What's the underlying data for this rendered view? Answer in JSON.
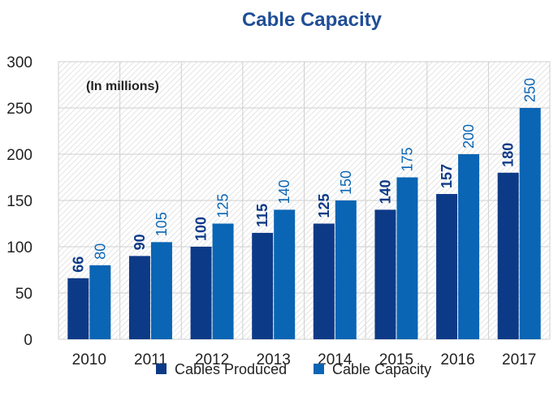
{
  "chart_data": {
    "type": "bar",
    "title": "Cable Capacity",
    "annotation": "(In millions)",
    "categories": [
      "2010",
      "2011",
      "2012",
      "2013",
      "2014",
      "2015",
      "2016",
      "2017"
    ],
    "series": [
      {
        "name": "Cables Produced",
        "values": [
          66,
          90,
          100,
          115,
          125,
          140,
          157,
          180
        ],
        "color": "#0d3a87"
      },
      {
        "name": "Cable Capacity",
        "values": [
          80,
          105,
          125,
          140,
          150,
          175,
          200,
          250
        ],
        "color": "#0a65b4"
      }
    ],
    "ylim": [
      0,
      300
    ],
    "yticks": [
      0,
      50,
      100,
      150,
      200,
      250,
      300
    ],
    "grid": true,
    "legend_position": "bottom"
  }
}
